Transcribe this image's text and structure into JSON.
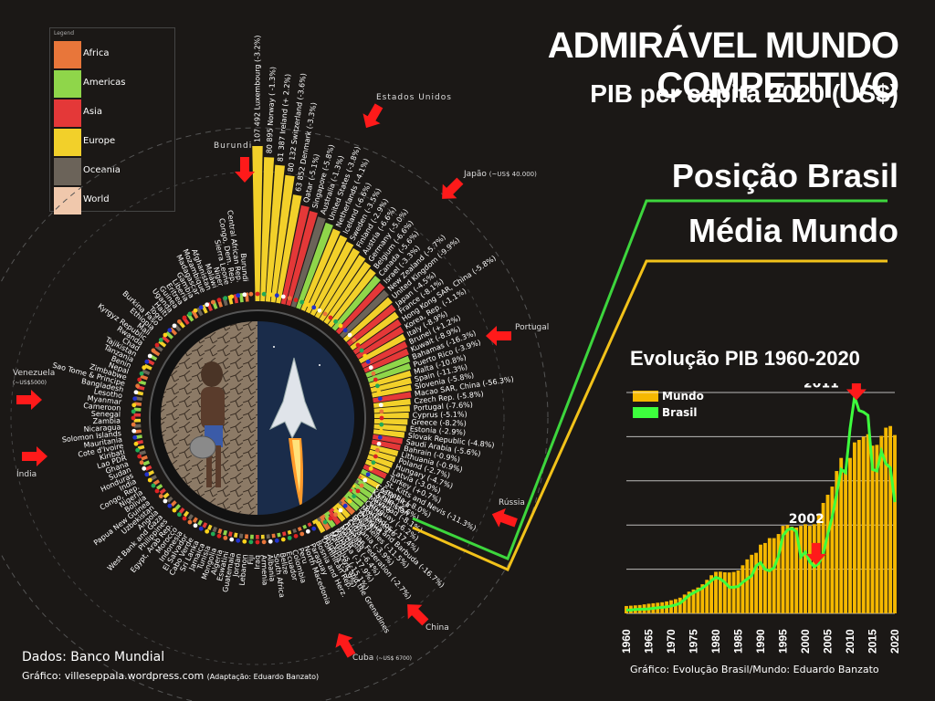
{
  "header": {
    "title": "ADMIRÁVEL MUNDO COMPETITIVO",
    "subtitle": "PIB per capita 2020 (US$)",
    "brasil_label": "Posição Brasil",
    "media_label": "Média Mundo"
  },
  "legend": {
    "header": "Legend",
    "items": [
      {
        "label": "Africa",
        "color": "#e8763a"
      },
      {
        "label": "Americas",
        "color": "#8fd64a"
      },
      {
        "label": "Asia",
        "color": "#e43838"
      },
      {
        "label": "Europe",
        "color": "#f2d02a"
      },
      {
        "label": "Oceania",
        "color": "#6b6359"
      },
      {
        "label": "World",
        "color": "#f0c8ac"
      }
    ]
  },
  "annotations": {
    "burundi": "Burundi",
    "eua": "Estados Unidos",
    "japao": "Japão",
    "japao_note": "(~US$ 40.000)",
    "portugal": "Portugal",
    "venezuela": "Venezuela",
    "venezuela_note": "(~US$5000)",
    "india": "Índia",
    "russia": "Rússia",
    "china": "China",
    "cuba": "Cuba",
    "cuba_note": "(~US$ 6700)"
  },
  "radial_labels": [
    {
      "text": "Luxembourg (-3.2%)",
      "value": "107 492"
    },
    {
      "text": "Norway ( -1.3%)",
      "value": "80 895"
    },
    {
      "text": "Ireland (+ 2.2%)",
      "value": "81 387"
    },
    {
      "text": "Switzerland (-3.6%)",
      "value": "80 132"
    },
    {
      "text": "Denmark (-3.3%)",
      "value": "63 852"
    },
    {
      "text": "Qatar (-5.1%)",
      "value": ""
    },
    {
      "text": "Singapore (-5.8%)",
      "value": ""
    },
    {
      "text": "Australia (-1.3%)",
      "value": ""
    },
    {
      "text": "United States (-3.8%)",
      "value": ""
    },
    {
      "text": "Netherlands (-4.1%)",
      "value": ""
    },
    {
      "text": "Iceland (-6.6%)",
      "value": ""
    },
    {
      "text": "Sweden (-3.5%)",
      "value": ""
    },
    {
      "text": "Finland (-2.9%)",
      "value": ""
    },
    {
      "text": "Austria (-6.6%)",
      "value": ""
    },
    {
      "text": "Germany (-5.0%)",
      "value": ""
    },
    {
      "text": "Belgium (-6.6%)",
      "value": ""
    },
    {
      "text": "Canada (-5.6%)",
      "value": ""
    },
    {
      "text": "Israel (-3.3%)",
      "value": ""
    },
    {
      "text": "New Zealand (-5.7%)",
      "value": ""
    },
    {
      "text": "United Kingdom (-9.9%)",
      "value": ""
    },
    {
      "text": "Japan (-4.5%)",
      "value": ""
    },
    {
      "text": "France (-8.1%)",
      "value": ""
    },
    {
      "text": "Hong Kong SAR, China (-5.8%)",
      "value": ""
    },
    {
      "text": "Korea, Rep. (-1.1%)",
      "value": ""
    },
    {
      "text": "Italy (-8.9%)",
      "value": ""
    },
    {
      "text": "Brunei (+1.2%)",
      "value": ""
    },
    {
      "text": "Kuwait (-8.9%)",
      "value": ""
    },
    {
      "text": "Bahamas (-16.3%)",
      "value": ""
    },
    {
      "text": "Puerto Rico (-3.9%)",
      "value": ""
    },
    {
      "text": "Malta (-10.8%)",
      "value": ""
    },
    {
      "text": "Spain (-11.3%)",
      "value": ""
    },
    {
      "text": "Slovenia (-5.8%)",
      "value": ""
    },
    {
      "text": "Macao SAR, China (-56.3%)",
      "value": ""
    },
    {
      "text": "Czech Rep. (-5.8%)",
      "value": ""
    },
    {
      "text": "Portugal (-7.6%)",
      "value": ""
    },
    {
      "text": "Cyprus (-5.1%)",
      "value": ""
    },
    {
      "text": "Greece (-8.2%)",
      "value": ""
    },
    {
      "text": "Estonia (-2.9%)",
      "value": ""
    },
    {
      "text": "Slovak Republic (-4.8%)",
      "value": ""
    },
    {
      "text": "Saudi Arabia (-5.6%)",
      "value": ""
    },
    {
      "text": "Bahrain (-0.9%)",
      "value": ""
    },
    {
      "text": "Lithuania (-0.9%)",
      "value": ""
    },
    {
      "text": "Poland (-2.7%)",
      "value": ""
    },
    {
      "text": "Hungary (-4.7%)",
      "value": ""
    },
    {
      "text": "Latvia (-3.0%)",
      "value": ""
    },
    {
      "text": "Turkey (+0.7%)",
      "value": ""
    },
    {
      "text": "St. Kitts and Nevis (-11.3%)",
      "value": ""
    },
    {
      "text": "Croatia (-8.0%)",
      "value": ""
    },
    {
      "text": "Chile (-6.6%)",
      "value": ""
    },
    {
      "text": "Trinidad (-8.1%)",
      "value": ""
    },
    {
      "text": "Uruguay (-6.2%)",
      "value": ""
    },
    {
      "text": "Barbados (-17.4%)",
      "value": ""
    },
    {
      "text": "Antigua and Barbuda (-16.7%)",
      "value": ""
    },
    {
      "text": "Seychelles (-11.5%)",
      "value": ""
    },
    {
      "text": "Romania (-3.9%)",
      "value": ""
    },
    {
      "text": "Russian Federation (-2.7%)",
      "value": ""
    },
    {
      "text": "Malaysia (-6.4%)",
      "value": ""
    },
    {
      "text": "Panama (-17.9%)",
      "value": ""
    },
    {
      "text": "Mauritius (-15.1%)",
      "value": ""
    },
    {
      "text": "Bulgaria (-3.9%)",
      "value": ""
    }
  ],
  "left_labels": [
    "Burundi",
    "Central African Rep.",
    "Congo, Dem. Rep.",
    "Sierra Leone",
    "Niger",
    "Malawi",
    "Afghanistan",
    "Mozambique",
    "Madagascar",
    "Gambia",
    "Liberia",
    "Eritrea",
    "Guinea",
    "Uganda",
    "Haiti",
    "Togo",
    "Burkina Faso",
    "Ethiopia",
    "Mali",
    "Kyrgyz Republic",
    "Rwanda",
    "Chad",
    "Tajikistan",
    "Tanzania",
    "Benin",
    "Nepal",
    "Zimbabwe",
    "Sao Tome & Principe",
    "Bangladesh",
    "Lesotho",
    "Myanmar",
    "Cameroon",
    "Senegal",
    "Zambia",
    "Nicaragua",
    "Solomon Islands",
    "Mauritania",
    "Cote d'Ivoire",
    "Kiribati",
    "Lao PDR",
    "Ghana",
    "Sudan",
    "Honduras",
    "India",
    "Congo, Rep.",
    "Nigeria",
    "Bolivia",
    "Papua New Guinea",
    "Uzbekistan",
    "Angola",
    "West Bank and Gaza",
    "Philippines",
    "Egypt, Arab Rep.",
    "Morocco",
    "Indonesia",
    "El Salvador",
    "Cabo Verde",
    "Sri Lanka",
    "Jamaica",
    "Tunisia",
    "Mongolia",
    "Algeria",
    "Eswatini",
    "Guatemala",
    "Jordan",
    "Lebanon",
    "Fiji",
    "Iraq",
    "Armenia",
    "Albania",
    "South Africa",
    "Belize",
    "Ecuador",
    "Colombia",
    "Peru",
    "North Macedonia",
    "Paraguay",
    "Bosnia and Herz.",
    "Dominican Rep.",
    "St. Vincent and the Grenadines",
    "Gabon",
    "Serbia",
    "Grenada",
    "Cuba",
    "Brazil",
    "Thailand",
    "Montenegro",
    "China",
    "Mexico",
    "Kazakhstan",
    "Costa Rica"
  ],
  "chart_data": [
    {
      "type": "bar",
      "title": "PIB per capita 2020 (US$)",
      "categories": [
        "Luxembourg",
        "Norway",
        "Ireland",
        "Switzerland",
        "Denmark"
      ],
      "values": [
        107492,
        80895,
        81387,
        80132,
        63852
      ],
      "xlabel": "",
      "ylabel": ""
    },
    {
      "type": "bar",
      "title": "Evolução PIB 1960-2020",
      "x": [
        1960,
        1961,
        1962,
        1963,
        1964,
        1965,
        1966,
        1967,
        1968,
        1969,
        1970,
        1971,
        1972,
        1973,
        1974,
        1975,
        1976,
        1977,
        1978,
        1979,
        1980,
        1981,
        1982,
        1983,
        1984,
        1985,
        1986,
        1987,
        1988,
        1989,
        1990,
        1991,
        1992,
        1993,
        1994,
        1995,
        1996,
        1997,
        1998,
        1999,
        2000,
        2001,
        2002,
        2003,
        2004,
        2005,
        2006,
        2007,
        2008,
        2009,
        2010,
        2011,
        2012,
        2013,
        2014,
        2015,
        2016,
        2017,
        2018,
        2019,
        2020
      ],
      "series": [
        {
          "name": "Mundo",
          "type": "bar",
          "values": [
            450,
            470,
            490,
            510,
            550,
            590,
            620,
            650,
            680,
            730,
            800,
            870,
            960,
            1150,
            1330,
            1460,
            1580,
            1780,
            2050,
            2330,
            2540,
            2550,
            2510,
            2500,
            2530,
            2620,
            2940,
            3300,
            3580,
            3700,
            4200,
            4300,
            4600,
            4600,
            4850,
            5350,
            5400,
            5300,
            5250,
            5350,
            5450,
            5350,
            5450,
            6050,
            6750,
            7250,
            7750,
            8700,
            9500,
            8800,
            9500,
            10450,
            10600,
            10800,
            10950,
            10250,
            10300,
            10850,
            11350,
            11450,
            10900
          ]
        },
        {
          "name": "Brasil",
          "type": "line",
          "values": [
            210,
            200,
            240,
            250,
            260,
            270,
            310,
            340,
            370,
            400,
            450,
            520,
            620,
            850,
            1100,
            1250,
            1400,
            1550,
            1750,
            2000,
            2200,
            2100,
            1900,
            1600,
            1600,
            1650,
            1900,
            2100,
            2300,
            2900,
            3100,
            2700,
            2600,
            2800,
            3500,
            4750,
            5100,
            5200,
            5000,
            3450,
            3750,
            3150,
            2850,
            3050,
            3650,
            4800,
            5900,
            7300,
            8800,
            8600,
            11300,
            13250,
            12400,
            12300,
            12100,
            8800,
            8700,
            9900,
            9150,
            8900,
            6800
          ]
        }
      ],
      "ylim": [
        0,
        13500
      ],
      "xticks": [
        "1960",
        "1965",
        "1970",
        "1975",
        "1980",
        "1985",
        "1990",
        "1995",
        "2000",
        "2005",
        "2010",
        "2015",
        "2020"
      ],
      "annotations": [
        "2011",
        "2002"
      ]
    }
  ],
  "line_chart": {
    "title": "Evolução PIB 1960-2020",
    "legend_mundo": "Mundo",
    "legend_brasil": "Brasil",
    "mundo_color": "#f5b800",
    "brasil_color": "#3dff3d",
    "peak_label": "2011",
    "low_label": "2002",
    "xticks": [
      "1960",
      "1965",
      "1970",
      "1975",
      "1980",
      "1985",
      "1990",
      "1995",
      "2000",
      "2005",
      "2010",
      "2015",
      "2020"
    ]
  },
  "footer": {
    "dados": "Dados: Banco Mundial",
    "grafico": "Gráfico: villeseppala.wordpress.com",
    "adaptacao": "(Adaptação: Eduardo Banzato)",
    "grafico2": "Gráfico: Evolução Brasil/Mundo: Eduardo Banzato"
  }
}
